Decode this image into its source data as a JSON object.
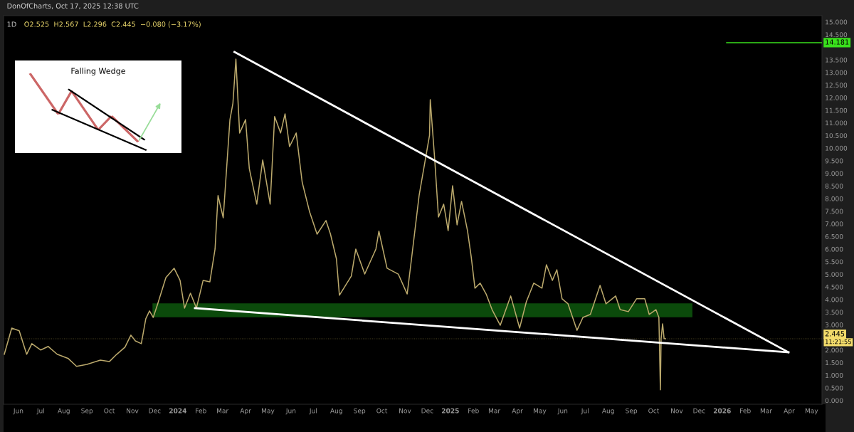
{
  "chart_data": {
    "type": "line",
    "title": "1D",
    "subtitle": "O2.525  H2.567  L2.296  C2.445  −0.080 (−3.17%)",
    "annotations": [
      "DonOfCharts, Oct 17, 2025 12:38 UTC",
      "Falling Wedge",
      "11:21:55"
    ],
    "series": [
      {
        "type": "line",
        "color": "#bba96c",
        "x": [
          "2023-05-13",
          "2023-05-23",
          "2023-06-02",
          "2023-06-12",
          "2023-06-19",
          "2023-07-01",
          "2023-07-11",
          "2023-07-23",
          "2023-08-07",
          "2023-08-18",
          "2023-09-01",
          "2023-09-19",
          "2023-10-01",
          "2023-10-11",
          "2023-10-22",
          "2023-10-30",
          "2023-11-05",
          "2023-11-13",
          "2023-11-19",
          "2023-11-24",
          "2023-11-29",
          "2023-12-05",
          "2023-12-16",
          "2023-12-27",
          "2024-01-04",
          "2024-01-10",
          "2024-01-18",
          "2024-01-26",
          "2024-02-04",
          "2024-02-13",
          "2024-02-20",
          "2024-02-24",
          "2024-03-02",
          "2024-03-11",
          "2024-03-15",
          "2024-03-19",
          "2024-03-24",
          "2024-04-01",
          "2024-04-06",
          "2024-04-16",
          "2024-04-24",
          "2024-05-04",
          "2024-05-10",
          "2024-05-18",
          "2024-05-24",
          "2024-05-30",
          "2024-06-08",
          "2024-06-16",
          "2024-06-26",
          "2024-07-06",
          "2024-07-18",
          "2024-07-24",
          "2024-08-01",
          "2024-08-05",
          "2024-08-21",
          "2024-08-27",
          "2024-09-08",
          "2024-09-23",
          "2024-09-27",
          "2024-10-08",
          "2024-10-23",
          "2024-11-04",
          "2024-11-10",
          "2024-11-20",
          "2024-12-04",
          "2024-12-05",
          "2024-12-11",
          "2024-12-16",
          "2024-12-23",
          "2024-12-29",
          "2025-01-04",
          "2025-01-10",
          "2025-01-16",
          "2025-01-24",
          "2025-01-29",
          "2025-02-03",
          "2025-02-10",
          "2025-02-18",
          "2025-02-26",
          "2025-03-09",
          "2025-03-23",
          "2025-04-04",
          "2025-04-13",
          "2025-04-23",
          "2025-05-04",
          "2025-05-10",
          "2025-05-18",
          "2025-05-24",
          "2025-05-31",
          "2025-06-08",
          "2025-06-20",
          "2025-06-28",
          "2025-07-08",
          "2025-07-21",
          "2025-07-29",
          "2025-08-11",
          "2025-08-17",
          "2025-08-28",
          "2025-09-08",
          "2025-09-19",
          "2025-09-25",
          "2025-10-04",
          "2025-10-08",
          "2025-10-10",
          "2025-10-11",
          "2025-10-13",
          "2025-10-15",
          "2025-10-17"
        ],
        "values": [
          1.83,
          2.87,
          2.76,
          1.83,
          2.25,
          2.0,
          2.14,
          1.83,
          1.66,
          1.35,
          1.43,
          1.6,
          1.54,
          1.83,
          2.11,
          2.59,
          2.36,
          2.25,
          3.24,
          3.55,
          3.29,
          3.83,
          4.87,
          5.24,
          4.76,
          3.66,
          4.25,
          3.66,
          4.76,
          4.7,
          6.0,
          8.12,
          7.24,
          11.13,
          11.78,
          13.53,
          10.6,
          11.13,
          9.19,
          7.78,
          9.53,
          7.78,
          11.25,
          10.6,
          11.36,
          10.06,
          10.6,
          8.65,
          7.47,
          6.59,
          7.13,
          6.59,
          5.61,
          4.17,
          4.93,
          6.0,
          5.01,
          6.0,
          6.71,
          5.24,
          5.01,
          4.22,
          5.66,
          8.12,
          10.51,
          11.92,
          9.55,
          7.27,
          7.78,
          6.73,
          8.51,
          6.96,
          7.89,
          6.73,
          5.69,
          4.45,
          4.65,
          4.22,
          3.6,
          2.98,
          4.14,
          2.87,
          3.91,
          4.65,
          4.45,
          5.38,
          4.76,
          5.18,
          4.03,
          3.83,
          2.78,
          3.29,
          3.41,
          4.56,
          3.83,
          4.14,
          3.6,
          3.52,
          4.03,
          4.03,
          3.41,
          3.6,
          3.29,
          0.42,
          2.45,
          3.04,
          2.45,
          2.445
        ]
      },
      {
        "type": "line",
        "color": "#0b4a0b",
        "x": [
          "2023-11-28",
          "2025-11-22"
        ],
        "lower": [
          3.3,
          3.3
        ],
        "upper": [
          3.85,
          3.85
        ],
        "values": [
          null,
          null
        ]
      },
      {
        "type": "line",
        "color": "#ffffff",
        "x": [
          "2024-03-17",
          "2026-03-31"
        ],
        "values": [
          13.81,
          1.91
        ]
      },
      {
        "type": "line",
        "color": "#ffffff",
        "x": [
          "2024-01-24",
          "2026-03-31"
        ],
        "values": [
          3.66,
          1.91
        ]
      },
      {
        "type": "line",
        "color": "#39e11c",
        "x": [
          "2026-01-07",
          "2026-05-15"
        ],
        "values": [
          14.181,
          14.181
        ],
        "value_labels": [
          null,
          "14.181"
        ]
      }
    ],
    "ref_lines": [
      {
        "axis": "y",
        "value": 2.445,
        "label": "2.445",
        "color": "#f3dc6b",
        "line_style": "dotted"
      }
    ],
    "xlim": [
      "2023-05-12",
      "2026-05-15"
    ],
    "xticks": [
      {
        "value": "2023-06-01",
        "label": "Jun"
      },
      {
        "value": "2023-07-01",
        "label": "Jul"
      },
      {
        "value": "2023-08-01",
        "label": "Aug"
      },
      {
        "value": "2023-09-01",
        "label": "Sep"
      },
      {
        "value": "2023-10-01",
        "label": "Oct"
      },
      {
        "value": "2023-11-01",
        "label": "Nov"
      },
      {
        "value": "2023-12-01",
        "label": "Dec"
      },
      {
        "value": "2024-01-01",
        "label": "2024"
      },
      {
        "value": "2024-02-01",
        "label": "Feb"
      },
      {
        "value": "2024-03-01",
        "label": "Mar"
      },
      {
        "value": "2024-04-01",
        "label": "Apr"
      },
      {
        "value": "2024-05-01",
        "label": "May"
      },
      {
        "value": "2024-06-01",
        "label": "Jun"
      },
      {
        "value": "2024-07-01",
        "label": "Jul"
      },
      {
        "value": "2024-08-01",
        "label": "Aug"
      },
      {
        "value": "2024-09-01",
        "label": "Sep"
      },
      {
        "value": "2024-10-01",
        "label": "Oct"
      },
      {
        "value": "2024-11-01",
        "label": "Nov"
      },
      {
        "value": "2024-12-01",
        "label": "Dec"
      },
      {
        "value": "2025-01-01",
        "label": "2025"
      },
      {
        "value": "2025-02-01",
        "label": "Feb"
      },
      {
        "value": "2025-03-01",
        "label": "Mar"
      },
      {
        "value": "2025-04-01",
        "label": "Apr"
      },
      {
        "value": "2025-05-01",
        "label": "May"
      },
      {
        "value": "2025-06-01",
        "label": "Jun"
      },
      {
        "value": "2025-07-01",
        "label": "Jul"
      },
      {
        "value": "2025-08-01",
        "label": "Aug"
      },
      {
        "value": "2025-09-01",
        "label": "Sep"
      },
      {
        "value": "2025-10-01",
        "label": "Oct"
      },
      {
        "value": "2025-11-01",
        "label": "Nov"
      },
      {
        "value": "2025-12-01",
        "label": "Dec"
      },
      {
        "value": "2026-01-01",
        "label": "2026"
      },
      {
        "value": "2026-02-01",
        "label": "Feb"
      },
      {
        "value": "2026-03-01",
        "label": "Mar"
      },
      {
        "value": "2026-04-01",
        "label": "Apr"
      },
      {
        "value": "2026-05-01",
        "label": "May"
      }
    ],
    "ylim": [
      -0.15,
      15.25
    ],
    "yticks": [
      {
        "value": 0,
        "label": "0.000"
      },
      {
        "value": 0.5,
        "label": "0.500"
      },
      {
        "value": 1,
        "label": "1.000"
      },
      {
        "value": 1.5,
        "label": "1.500"
      },
      {
        "value": 2,
        "label": "2.000"
      },
      {
        "value": 3,
        "label": "3.000"
      },
      {
        "value": 3.5,
        "label": "3.500"
      },
      {
        "value": 4,
        "label": "4.000"
      },
      {
        "value": 4.5,
        "label": "4.500"
      },
      {
        "value": 5,
        "label": "5.000"
      },
      {
        "value": 5.5,
        "label": "5.500"
      },
      {
        "value": 6,
        "label": "6.000"
      },
      {
        "value": 6.5,
        "label": "6.500"
      },
      {
        "value": 7,
        "label": "7.000"
      },
      {
        "value": 7.5,
        "label": "7.500"
      },
      {
        "value": 8,
        "label": "8.000"
      },
      {
        "value": 8.5,
        "label": "8.500"
      },
      {
        "value": 9,
        "label": "9.000"
      },
      {
        "value": 9.5,
        "label": "9.500"
      },
      {
        "value": 10,
        "label": "10.000"
      },
      {
        "value": 10.5,
        "label": "10.500"
      },
      {
        "value": 11,
        "label": "11.000"
      },
      {
        "value": 11.5,
        "label": "11.500"
      },
      {
        "value": 12,
        "label": "12.000"
      },
      {
        "value": 12.5,
        "label": "12.500"
      },
      {
        "value": 13,
        "label": "13.000"
      },
      {
        "value": 13.5,
        "label": "13.500"
      },
      {
        "value": 14.5,
        "label": "14.500"
      },
      {
        "value": 15,
        "label": "15.000"
      }
    ],
    "grid": false,
    "legend": false
  }
}
